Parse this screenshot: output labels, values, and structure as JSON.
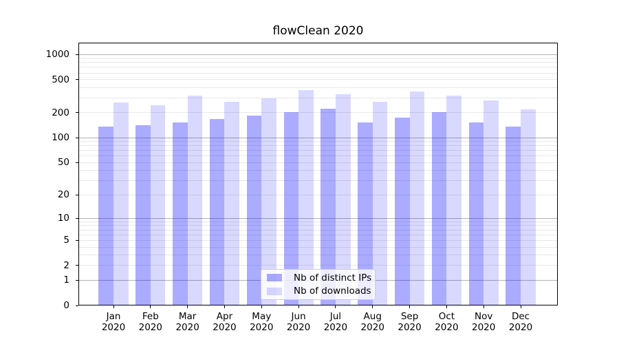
{
  "chart_data": {
    "type": "bar",
    "title": "flowClean 2020",
    "categories": [
      "Jan",
      "Feb",
      "Mar",
      "Apr",
      "May",
      "Jun",
      "Jul",
      "Aug",
      "Sep",
      "Oct",
      "Nov",
      "Dec"
    ],
    "category_year": "2020",
    "series": [
      {
        "name": "Nb of distinct IPs",
        "color": "rgba(0,0,255,0.33)",
        "values": [
          136,
          143,
          152,
          169,
          186,
          205,
          225,
          154,
          176,
          205,
          154,
          137
        ]
      },
      {
        "name": "Nb of downloads",
        "color": "rgba(0,0,255,0.15)",
        "values": [
          268,
          248,
          322,
          271,
          299,
          372,
          335,
          271,
          361,
          322,
          282,
          221
        ]
      }
    ],
    "x_axis": {
      "tick_label_line2": "2020"
    },
    "y_axis": {
      "scale": "log1p",
      "tick_values": [
        0,
        1,
        2,
        5,
        10,
        20,
        50,
        100,
        200,
        500,
        1000
      ],
      "ylim": [
        0,
        1385
      ],
      "major_grid_values": [
        1,
        10,
        100,
        1000
      ],
      "major_grid_color": "#b2b2b2",
      "minor_grid_color": "#e7e7e7",
      "grid": "both"
    },
    "legend": {
      "position": "lower center"
    },
    "colors": {
      "axis": "#000000",
      "background": "#ffffff"
    }
  }
}
